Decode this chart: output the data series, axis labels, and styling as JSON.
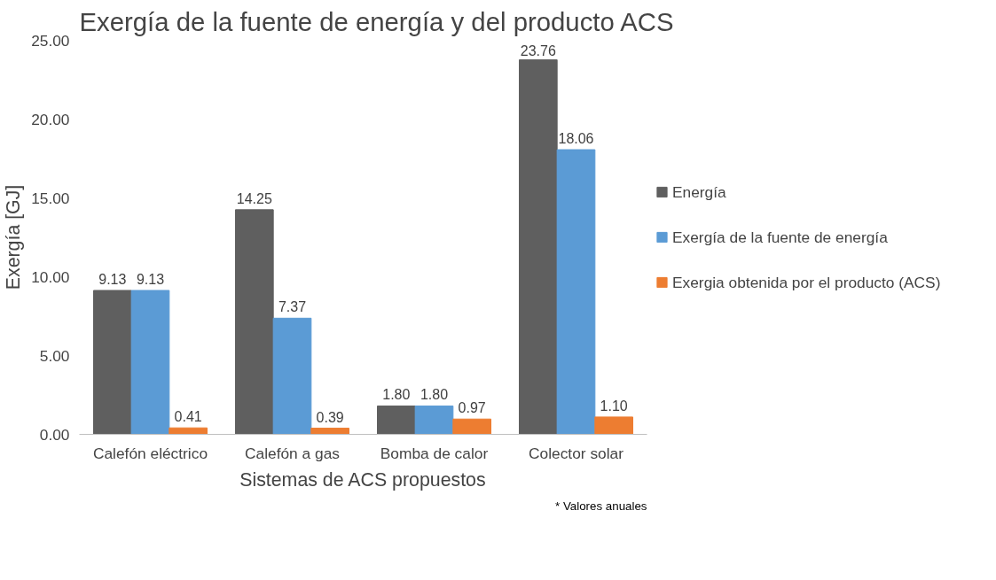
{
  "chart_data": {
    "type": "bar",
    "title": "Exergía de la fuente de energía y del producto ACS",
    "xlabel": "Sistemas de ACS propuestos",
    "ylabel": "Exergía [GJ]",
    "categories": [
      "Calefón eléctrico",
      "Calefón a gas",
      "Bomba de calor",
      "Colector solar"
    ],
    "series": [
      {
        "name": "Energía",
        "color": "#5f5f5f",
        "values": [
          9.13,
          14.25,
          1.8,
          23.76
        ],
        "value_labels": [
          "9.13",
          "14.25",
          "1.80",
          "23.76"
        ]
      },
      {
        "name": "Exergía de la fuente de energía",
        "color": "#5b9bd5",
        "values": [
          9.13,
          7.37,
          1.8,
          18.06
        ],
        "value_labels": [
          "9.13",
          "7.37",
          "1.80",
          "18.06"
        ]
      },
      {
        "name": "Exergia obtenida por el producto (ACS)",
        "color": "#ed7d31",
        "values": [
          0.41,
          0.39,
          0.97,
          1.1
        ],
        "value_labels": [
          "0.41",
          "0.39",
          "0.97",
          "1.10"
        ]
      }
    ],
    "ylim": [
      0,
      25
    ],
    "yticks": [
      {
        "value": 0,
        "label": "0.00"
      },
      {
        "value": 5,
        "label": "5.00"
      },
      {
        "value": 10,
        "label": "10.00"
      },
      {
        "value": 15,
        "label": "15.00"
      },
      {
        "value": 20,
        "label": "20.00"
      },
      {
        "value": 25,
        "label": "25.00"
      }
    ],
    "grid": false,
    "legend": "right",
    "annotations": [
      "* Valores anuales"
    ]
  }
}
